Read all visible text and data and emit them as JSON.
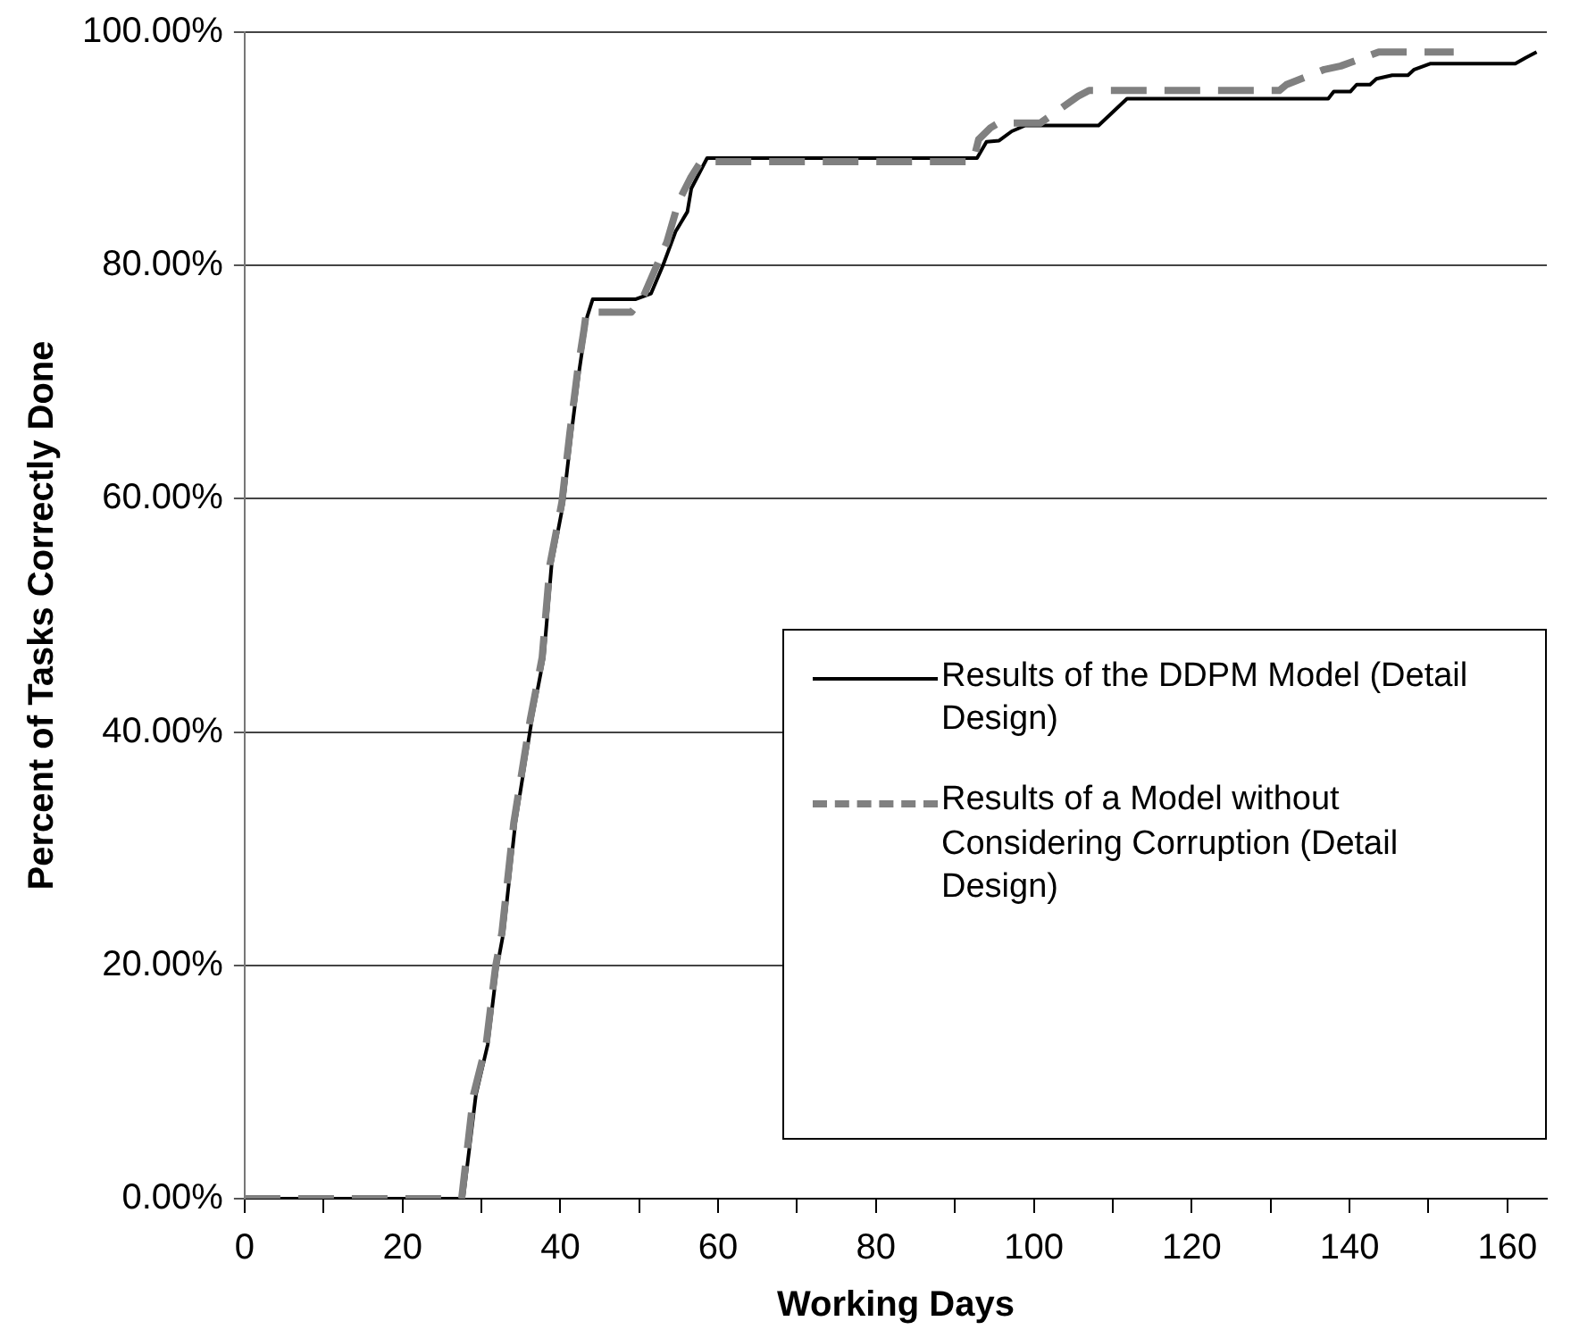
{
  "chart_data": {
    "type": "line",
    "xlabel": "Working Days",
    "ylabel": "Percent of Tasks Correctly Done",
    "xlim": [
      0,
      165
    ],
    "ylim": [
      0,
      100
    ],
    "xticks": [
      0,
      {
        "value": 10,
        "label": null
      },
      20,
      {
        "value": 30,
        "label": null
      },
      40,
      {
        "value": 50,
        "label": null
      },
      60,
      {
        "value": 70,
        "label": null
      },
      80,
      {
        "value": 90,
        "label": null
      },
      100,
      {
        "value": 110,
        "label": null
      },
      120,
      {
        "value": 130,
        "label": null
      },
      140,
      {
        "value": 150,
        "label": null
      },
      160
    ],
    "yticks": [
      {
        "value": 0,
        "label": "0.00%"
      },
      {
        "value": 20,
        "label": "20.00%"
      },
      {
        "value": 40,
        "label": "40.00%"
      },
      {
        "value": 60,
        "label": "60.00%"
      },
      {
        "value": 80,
        "label": "80.00%"
      },
      {
        "value": 100,
        "label": "100.00%"
      }
    ],
    "grid": "y",
    "legend": "right",
    "marker": "none",
    "series": [
      {
        "name": "Results of the DDPM Model (Detail Design)",
        "color": "#000000",
        "line_style": "solid",
        "x": [
          0,
          27.7,
          29.3,
          30.8,
          32.0,
          32.8,
          34.3,
          36.4,
          37.9,
          38.9,
          40.4,
          41.4,
          42.4,
          43.4,
          44.1,
          49.5,
          51.5,
          53.0,
          54.6,
          56.1,
          56.6,
          58.6,
          92.8,
          94.0,
          95.6,
          97.2,
          98.9,
          108.2,
          111.8,
          137.3,
          138.0,
          140.1,
          140.9,
          142.6,
          143.4,
          145.4,
          147.4,
          148.2,
          150.2,
          161.0,
          162.3,
          163.7
        ],
        "values": [
          0,
          0,
          8.9,
          13.2,
          19.9,
          22.8,
          32.2,
          41.1,
          46.4,
          54.4,
          59.7,
          65.6,
          71.0,
          75.6,
          77.1,
          77.1,
          77.6,
          80.0,
          82.9,
          84.6,
          86.6,
          89.2,
          89.2,
          90.6,
          90.7,
          91.5,
          92.0,
          92.0,
          94.3,
          94.3,
          94.9,
          94.9,
          95.5,
          95.5,
          96.0,
          96.3,
          96.3,
          96.8,
          97.3,
          97.3,
          97.8,
          98.3
        ]
      },
      {
        "name": "Results of a Model without Considering Corruption (Detail Design)",
        "color": "#808080",
        "line_style": "dashed",
        "x": [
          0,
          27.5,
          29.0,
          30.6,
          31.8,
          32.6,
          34.1,
          36.2,
          37.7,
          38.7,
          40.2,
          41.2,
          42.2,
          43.0,
          43.3,
          49.0,
          50.5,
          53.5,
          55.0,
          56.5,
          57.8,
          59.0,
          92.3,
          93.0,
          94.5,
          95.5,
          100.8,
          105.6,
          107.0,
          131.1,
          132.0,
          136.8,
          138.9,
          142.1,
          143.7,
          153.2
        ],
        "values": [
          0,
          0,
          8.9,
          13.2,
          19.9,
          22.8,
          32.2,
          41.1,
          46.4,
          54.4,
          59.7,
          65.6,
          71.0,
          74.5,
          76.0,
          76.0,
          77.3,
          82.0,
          85.5,
          87.5,
          88.9,
          88.9,
          88.9,
          90.8,
          91.8,
          92.2,
          92.2,
          94.5,
          95.0,
          95.0,
          95.5,
          96.8,
          97.1,
          97.9,
          98.3,
          98.3
        ]
      }
    ]
  }
}
